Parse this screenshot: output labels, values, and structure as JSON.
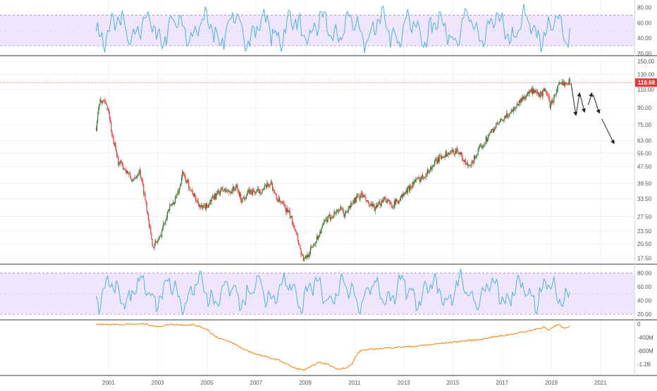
{
  "chart_data": [
    {
      "type": "line",
      "panel": "oscillator-top",
      "yticks": [
        20.0,
        40.0,
        60.0,
        80.0
      ],
      "ylim": [
        18,
        88
      ],
      "band": [
        30,
        70
      ],
      "x_start": 2000.5,
      "x_end": 2019.75
    },
    {
      "type": "candlestick",
      "panel": "price",
      "scale": "log",
      "yticks": [
        "17.50",
        "20.50",
        "23.50",
        "27.50",
        "33.50",
        "39.50",
        "47.50",
        "55.00",
        "63.00",
        "75.00",
        "90.00",
        "110.00",
        "130.00",
        "150.00"
      ],
      "ylim": [
        16.5,
        158
      ],
      "last_price": 118.68,
      "last_price_label": "118.68",
      "anchors": [
        [
          2000.5,
          72
        ],
        [
          2000.65,
          100
        ],
        [
          2000.85,
          95
        ],
        [
          2001.0,
          88
        ],
        [
          2001.15,
          65
        ],
        [
          2001.4,
          50
        ],
        [
          2001.7,
          46
        ],
        [
          2002.0,
          40
        ],
        [
          2002.25,
          46
        ],
        [
          2002.4,
          38
        ],
        [
          2002.6,
          28
        ],
        [
          2002.75,
          21
        ],
        [
          2002.85,
          20
        ],
        [
          2003.1,
          22
        ],
        [
          2003.4,
          29
        ],
        [
          2003.7,
          33
        ],
        [
          2003.9,
          38
        ],
        [
          2004.0,
          44
        ],
        [
          2004.2,
          40
        ],
        [
          2004.5,
          34
        ],
        [
          2004.8,
          30
        ],
        [
          2005.0,
          31
        ],
        [
          2005.3,
          34
        ],
        [
          2005.6,
          37
        ],
        [
          2005.9,
          36
        ],
        [
          2006.2,
          38
        ],
        [
          2006.4,
          33
        ],
        [
          2006.7,
          36
        ],
        [
          2007.0,
          36
        ],
        [
          2007.3,
          37
        ],
        [
          2007.6,
          40
        ],
        [
          2007.8,
          34
        ],
        [
          2008.0,
          32
        ],
        [
          2008.3,
          29
        ],
        [
          2008.6,
          24
        ],
        [
          2008.8,
          19
        ],
        [
          2008.95,
          17
        ],
        [
          2009.2,
          19
        ],
        [
          2009.5,
          22
        ],
        [
          2009.8,
          26
        ],
        [
          2010.1,
          28
        ],
        [
          2010.4,
          30
        ],
        [
          2010.6,
          28
        ],
        [
          2011.0,
          33
        ],
        [
          2011.3,
          35
        ],
        [
          2011.6,
          31
        ],
        [
          2011.9,
          30
        ],
        [
          2012.2,
          34
        ],
        [
          2012.5,
          31
        ],
        [
          2012.8,
          33
        ],
        [
          2013.1,
          36
        ],
        [
          2013.4,
          40
        ],
        [
          2013.7,
          42
        ],
        [
          2014.0,
          45
        ],
        [
          2014.3,
          50
        ],
        [
          2014.6,
          54
        ],
        [
          2014.9,
          55
        ],
        [
          2015.2,
          57
        ],
        [
          2015.5,
          49
        ],
        [
          2015.7,
          47
        ],
        [
          2015.9,
          53
        ],
        [
          2016.2,
          60
        ],
        [
          2016.5,
          68
        ],
        [
          2016.8,
          75
        ],
        [
          2017.0,
          78
        ],
        [
          2017.3,
          85
        ],
        [
          2017.6,
          93
        ],
        [
          2017.9,
          102
        ],
        [
          2018.2,
          108
        ],
        [
          2018.5,
          103
        ],
        [
          2018.8,
          109
        ],
        [
          2018.95,
          92
        ],
        [
          2019.1,
          100
        ],
        [
          2019.3,
          115
        ],
        [
          2019.5,
          118
        ],
        [
          2019.65,
          121
        ],
        [
          2019.75,
          118.68
        ]
      ],
      "projection_arrows": [
        [
          [
            2019.8,
            118
          ],
          [
            2020.0,
            83
          ]
        ],
        [
          [
            2020.0,
            83
          ],
          [
            2020.15,
            106
          ]
        ],
        [
          [
            2020.15,
            106
          ],
          [
            2020.35,
            86
          ]
        ],
        [
          [
            2020.5,
            93
          ],
          [
            2020.65,
            106
          ]
        ],
        [
          [
            2020.7,
            104
          ],
          [
            2020.95,
            85
          ]
        ],
        [
          [
            2021.05,
            80
          ],
          [
            2021.55,
            61
          ]
        ]
      ]
    },
    {
      "type": "line",
      "panel": "oscillator-bottom",
      "yticks": [
        20.0,
        40.0,
        60.0,
        80.0
      ],
      "ylim": [
        14,
        92
      ],
      "band": [
        20,
        80
      ],
      "x_start": 2000.5,
      "x_end": 2019.75
    },
    {
      "type": "area",
      "panel": "cumulative-volume",
      "yticks": [
        "0",
        "-400M",
        "-800M",
        "-1.2B"
      ],
      "ylim": [
        -1500,
        110
      ],
      "anchors": [
        [
          2000.5,
          0
        ],
        [
          2001.5,
          -10
        ],
        [
          2002.5,
          10
        ],
        [
          2003.0,
          -80
        ],
        [
          2003.5,
          0
        ],
        [
          2004.0,
          -20
        ],
        [
          2004.5,
          -20
        ],
        [
          2005.0,
          -150
        ],
        [
          2005.3,
          -350
        ],
        [
          2005.6,
          -450
        ],
        [
          2006.0,
          -550
        ],
        [
          2006.5,
          -750
        ],
        [
          2007.0,
          -900
        ],
        [
          2007.5,
          -1000
        ],
        [
          2008.0,
          -1100
        ],
        [
          2008.5,
          -1300
        ],
        [
          2008.9,
          -1380
        ],
        [
          2009.2,
          -1300
        ],
        [
          2009.5,
          -1150
        ],
        [
          2009.9,
          -1200
        ],
        [
          2010.3,
          -1350
        ],
        [
          2010.7,
          -1300
        ],
        [
          2010.9,
          -1200
        ],
        [
          2011.1,
          -900
        ],
        [
          2011.3,
          -780
        ],
        [
          2011.8,
          -750
        ],
        [
          2012.5,
          -700
        ],
        [
          2013.0,
          -680
        ],
        [
          2013.5,
          -660
        ],
        [
          2014.0,
          -620
        ],
        [
          2014.5,
          -580
        ],
        [
          2015.0,
          -540
        ],
        [
          2015.5,
          -500
        ],
        [
          2016.0,
          -470
        ],
        [
          2016.5,
          -400
        ],
        [
          2017.0,
          -350
        ],
        [
          2017.5,
          -280
        ],
        [
          2018.0,
          -220
        ],
        [
          2018.5,
          -120
        ],
        [
          2018.7,
          -80
        ],
        [
          2018.9,
          -200
        ],
        [
          2019.1,
          -80
        ],
        [
          2019.3,
          0
        ],
        [
          2019.5,
          -120
        ],
        [
          2019.75,
          -60
        ]
      ]
    }
  ],
  "xaxis": {
    "labels": [
      "2001",
      "2003",
      "2005",
      "2007",
      "2009",
      "2011",
      "2013",
      "2015",
      "2017",
      "2019",
      "2021"
    ],
    "years": [
      2001,
      2003,
      2005,
      2007,
      2009,
      2011,
      2013,
      2015,
      2017,
      2019,
      2021
    ]
  },
  "colors": {
    "oscillator_line": "#4fb3d9",
    "band_fill": "#eadcfc",
    "band_border": "#a78bca",
    "candle_up": "#2e7d32",
    "candle_down": "#e53935",
    "price_tag": "#e53935",
    "volume_line": "#f57c00",
    "arrow": "#222222",
    "grid": "#eef0f3",
    "divider": "#333333"
  }
}
